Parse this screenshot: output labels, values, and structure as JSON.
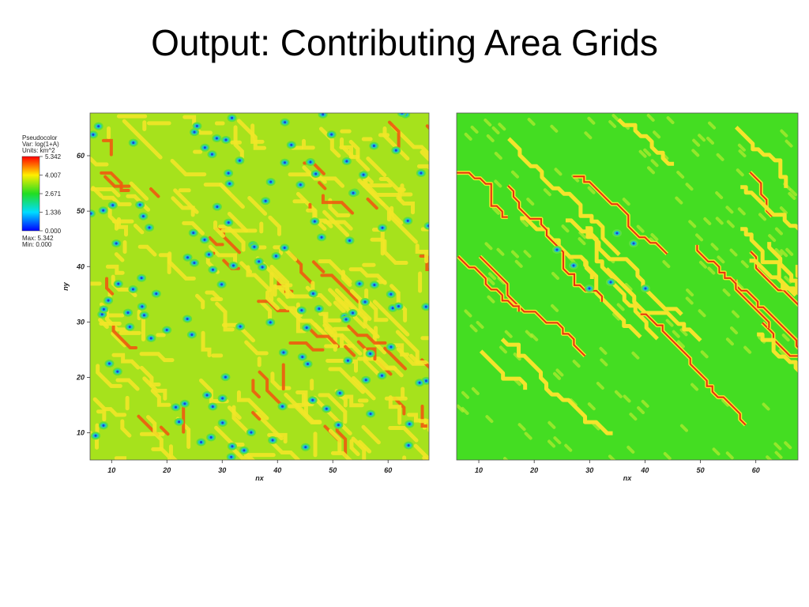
{
  "title": "Output: Contributing Area Grids",
  "legend": {
    "lines": [
      "Pseudocolor",
      "Var: log(1+A)",
      "Units: km^2"
    ],
    "ticks": [
      5.342,
      4.007,
      2.671,
      1.336,
      {
        "value": 0,
        "label": "0.000"
      }
    ],
    "max": "Max: 5.342",
    "min": "Min: 0.000"
  },
  "plots": [
    {
      "xlabel": "nx",
      "ylabel": "ny",
      "xlim": [
        6.1,
        67.4
      ],
      "ylim": [
        5.1,
        67.7
      ],
      "xticks": [
        10,
        20,
        30,
        40,
        50,
        60
      ],
      "yticks": [
        10,
        20,
        30,
        40,
        50,
        60
      ]
    },
    {
      "xlabel": "nx",
      "xlim": [
        6,
        67.6
      ],
      "ylim": [
        5.1,
        67.7
      ],
      "xticks": [
        10,
        20,
        30,
        40,
        50,
        60
      ]
    }
  ]
}
